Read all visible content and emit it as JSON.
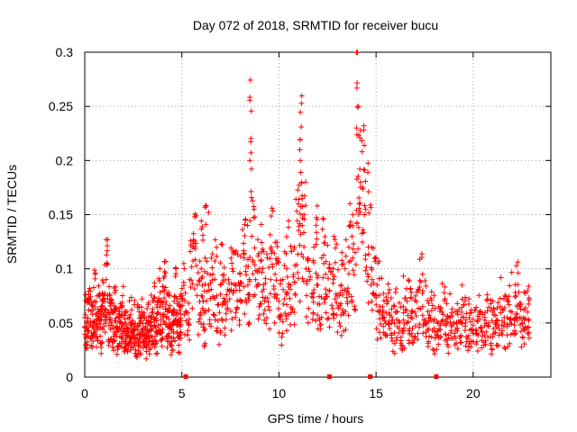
{
  "chart_data": {
    "type": "scatter",
    "title": "Day 072 of 2018, SRMTID for receiver bucu",
    "xlabel": "GPS time / hours",
    "ylabel": "SRMTID / TECUs",
    "xlim": [
      0,
      24
    ],
    "ylim": [
      0,
      0.3
    ],
    "xticks": [
      0,
      5,
      10,
      15,
      20
    ],
    "xtick_labels": [
      "0",
      "5",
      "10",
      "15",
      "20"
    ],
    "yticks": [
      0,
      0.05,
      0.1,
      0.15,
      0.2,
      0.25,
      0.3
    ],
    "ytick_labels": [
      "0",
      "0.05",
      "0.1",
      "0.15",
      "0.2",
      "0.25",
      "0.3"
    ],
    "grid": true,
    "marker": "+",
    "color": "#ff0000",
    "series": [
      {
        "name": "SRMTID",
        "x": [
          0.0,
          0.1,
          0.2,
          0.3,
          0.4,
          0.5,
          0.6,
          0.7,
          0.8,
          0.9,
          1.0,
          1.1,
          1.2,
          1.3,
          1.4,
          1.5,
          1.6,
          1.7,
          1.8,
          1.9,
          2.0,
          2.1,
          2.2,
          2.3,
          2.4,
          2.5,
          2.6,
          2.7,
          2.8,
          2.9,
          3.0,
          3.1,
          3.2,
          3.3,
          3.4,
          3.5,
          3.6,
          3.7,
          3.8,
          3.9,
          4.0,
          4.1,
          4.2,
          4.3,
          4.4,
          4.5,
          4.6,
          4.7,
          4.8,
          4.9,
          5.0,
          5.2,
          5.4,
          5.6,
          5.8,
          6.0,
          6.1,
          6.2,
          6.4,
          6.6,
          6.8,
          7.0,
          7.2,
          7.4,
          7.6,
          7.8,
          8.0,
          8.2,
          8.4,
          8.5,
          8.6,
          8.8,
          9.0,
          9.2,
          9.4,
          9.6,
          9.8,
          10.0,
          10.2,
          10.4,
          10.6,
          10.8,
          11.0,
          11.1,
          11.2,
          11.4,
          11.6,
          11.8,
          12.0,
          12.2,
          12.4,
          12.6,
          12.8,
          13.0,
          13.2,
          13.4,
          13.6,
          13.8,
          14.0,
          14.1,
          14.2,
          14.4,
          14.6,
          14.8,
          15.0,
          15.2,
          15.4,
          15.6,
          15.8,
          16.0,
          16.2,
          16.4,
          16.6,
          16.8,
          17.0,
          17.2,
          17.4,
          17.6,
          17.8,
          18.0,
          18.2,
          18.4,
          18.6,
          18.8,
          19.0,
          19.2,
          19.4,
          19.6,
          19.8,
          20.0,
          20.2,
          20.4,
          20.6,
          20.8,
          21.0,
          21.2,
          21.4,
          21.6,
          21.8,
          22.0,
          22.2,
          22.4,
          22.6,
          22.8
        ],
        "y": [
          0.055,
          0.05,
          0.062,
          0.048,
          0.058,
          0.07,
          0.053,
          0.06,
          0.049,
          0.065,
          0.075,
          0.09,
          0.06,
          0.055,
          0.048,
          0.06,
          0.052,
          0.045,
          0.05,
          0.058,
          0.042,
          0.05,
          0.038,
          0.055,
          0.044,
          0.05,
          0.035,
          0.047,
          0.04,
          0.052,
          0.045,
          0.038,
          0.05,
          0.042,
          0.055,
          0.06,
          0.048,
          0.052,
          0.07,
          0.058,
          0.065,
          0.08,
          0.055,
          0.062,
          0.05,
          0.06,
          0.07,
          0.058,
          0.05,
          0.065,
          0.075,
          0.06,
          0.09,
          0.12,
          0.085,
          0.1,
          0.07,
          0.11,
          0.08,
          0.095,
          0.075,
          0.085,
          0.07,
          0.09,
          0.1,
          0.08,
          0.095,
          0.11,
          0.085,
          0.2,
          0.13,
          0.09,
          0.1,
          0.085,
          0.11,
          0.12,
          0.095,
          0.07,
          0.09,
          0.1,
          0.085,
          0.12,
          0.16,
          0.2,
          0.14,
          0.1,
          0.09,
          0.12,
          0.085,
          0.11,
          0.095,
          0.08,
          0.09,
          0.075,
          0.085,
          0.1,
          0.12,
          0.11,
          0.23,
          0.25,
          0.18,
          0.15,
          0.12,
          0.09,
          0.075,
          0.065,
          0.055,
          0.07,
          0.05,
          0.06,
          0.045,
          0.065,
          0.07,
          0.055,
          0.06,
          0.08,
          0.065,
          0.05,
          0.055,
          0.045,
          0.05,
          0.06,
          0.048,
          0.055,
          0.05,
          0.045,
          0.06,
          0.05,
          0.055,
          0.048,
          0.052,
          0.045,
          0.055,
          0.05,
          0.06,
          0.052,
          0.065,
          0.055,
          0.07,
          0.06,
          0.075,
          0.065,
          0.055,
          0.06
        ]
      }
    ],
    "markers_on_axis": {
      "x": [
        5.2,
        12.6,
        14.7,
        18.1
      ],
      "y": [
        0,
        0,
        0,
        0
      ]
    }
  }
}
